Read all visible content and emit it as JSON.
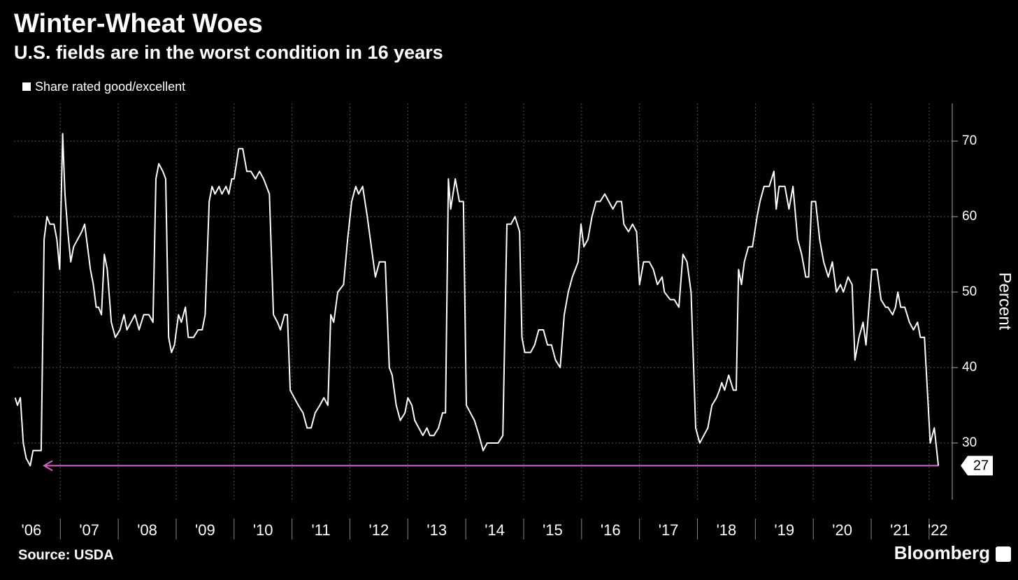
{
  "chart_data": {
    "type": "line",
    "title": "Winter-Wheat Woes",
    "subtitle": "U.S. fields are in the worst condition in 16 years",
    "y_label": "Percent",
    "source": "Source: USDA",
    "brand": "Bloomberg",
    "grid": true,
    "legend": "top-left",
    "xlim": [
      2006.2,
      2022.4
    ],
    "ylim": [
      22.5,
      75
    ],
    "yticks": [
      30,
      40,
      50,
      60,
      70
    ],
    "xticks": [
      {
        "value": 2006.5,
        "label": "'06"
      },
      {
        "value": 2007.5,
        "label": "'07"
      },
      {
        "value": 2008.5,
        "label": "'08"
      },
      {
        "value": 2009.5,
        "label": "'09"
      },
      {
        "value": 2010.5,
        "label": "'10"
      },
      {
        "value": 2011.5,
        "label": "'11"
      },
      {
        "value": 2012.5,
        "label": "'12"
      },
      {
        "value": 2013.5,
        "label": "'13"
      },
      {
        "value": 2014.5,
        "label": "'14"
      },
      {
        "value": 2015.5,
        "label": "'15"
      },
      {
        "value": 2016.5,
        "label": "'16"
      },
      {
        "value": 2017.5,
        "label": "'17"
      },
      {
        "value": 2018.5,
        "label": "'18"
      },
      {
        "value": 2019.5,
        "label": "'19"
      },
      {
        "value": 2020.5,
        "label": "'20"
      },
      {
        "value": 2021.5,
        "label": "'21"
      },
      {
        "value": 2022.15,
        "label": "'22"
      }
    ],
    "xgrid": [
      2007,
      2008,
      2009,
      2010,
      2011,
      2012,
      2013,
      2014,
      2015,
      2016,
      2017,
      2018,
      2019,
      2020,
      2021,
      2022
    ],
    "annotation": {
      "value": 27,
      "x_from": 2006.72,
      "x_to": 2022.16,
      "color": "#d660c8"
    },
    "x": [
      2006.22,
      2006.26,
      2006.31,
      2006.36,
      2006.41,
      2006.48,
      2006.53,
      2006.67,
      2006.72,
      2006.77,
      2006.82,
      2006.89,
      2006.94,
      2006.99,
      2007.04,
      2007.08,
      2007.13,
      2007.18,
      2007.23,
      2007.3,
      2007.37,
      2007.42,
      2007.47,
      2007.52,
      2007.57,
      2007.62,
      2007.66,
      2007.71,
      2007.76,
      2007.81,
      2007.88,
      2007.95,
      2008.03,
      2008.1,
      2008.15,
      2008.22,
      2008.29,
      2008.36,
      2008.44,
      2008.53,
      2008.6,
      2008.65,
      2008.7,
      2008.77,
      2008.82,
      2008.87,
      2008.92,
      2008.97,
      2009.04,
      2009.09,
      2009.16,
      2009.21,
      2009.3,
      2009.38,
      2009.45,
      2009.5,
      2009.57,
      2009.62,
      2009.67,
      2009.74,
      2009.79,
      2009.86,
      2009.91,
      2009.96,
      2010.0,
      2010.08,
      2010.15,
      2010.22,
      2010.29,
      2010.37,
      2010.44,
      2010.51,
      2010.61,
      2010.68,
      2010.75,
      2010.8,
      2010.87,
      2010.92,
      2010.97,
      2011.04,
      2011.11,
      2011.19,
      2011.26,
      2011.33,
      2011.4,
      2011.48,
      2011.55,
      2011.62,
      2011.67,
      2011.72,
      2011.79,
      2011.89,
      2011.96,
      2012.03,
      2012.1,
      2012.15,
      2012.22,
      2012.3,
      2012.37,
      2012.44,
      2012.51,
      2012.61,
      2012.68,
      2012.73,
      2012.8,
      2012.87,
      2012.95,
      2013.0,
      2013.07,
      2013.12,
      2013.19,
      2013.26,
      2013.33,
      2013.38,
      2013.45,
      2013.53,
      2013.6,
      2013.65,
      2013.7,
      2013.74,
      2013.82,
      2013.89,
      2013.96,
      2014.01,
      2014.08,
      2014.15,
      2014.23,
      2014.3,
      2014.37,
      2014.47,
      2014.56,
      2014.64,
      2014.71,
      2014.78,
      2014.85,
      2014.93,
      2014.97,
      2015.02,
      2015.12,
      2015.19,
      2015.26,
      2015.34,
      2015.41,
      2015.48,
      2015.55,
      2015.63,
      2015.7,
      2015.77,
      2015.84,
      2015.94,
      2015.99,
      2016.04,
      2016.11,
      2016.18,
      2016.25,
      2016.32,
      2016.4,
      2016.47,
      2016.54,
      2016.61,
      2016.69,
      2016.73,
      2016.81,
      2016.88,
      2016.95,
      2017.0,
      2017.07,
      2017.17,
      2017.24,
      2017.31,
      2017.39,
      2017.43,
      2017.53,
      2017.6,
      2017.68,
      2017.75,
      2017.82,
      2017.89,
      2017.97,
      2018.04,
      2018.11,
      2018.18,
      2018.25,
      2018.33,
      2018.38,
      2018.42,
      2018.47,
      2018.54,
      2018.62,
      2018.67,
      2018.71,
      2018.76,
      2018.81,
      2018.88,
      2018.95,
      2019.03,
      2019.08,
      2019.15,
      2019.24,
      2019.32,
      2019.36,
      2019.41,
      2019.51,
      2019.58,
      2019.65,
      2019.73,
      2019.8,
      2019.87,
      2019.92,
      2019.97,
      2020.04,
      2020.11,
      2020.18,
      2020.26,
      2020.33,
      2020.4,
      2020.47,
      2020.52,
      2020.6,
      2020.67,
      2020.72,
      2020.79,
      2020.86,
      2020.91,
      2021.01,
      2021.1,
      2021.17,
      2021.25,
      2021.29,
      2021.37,
      2021.42,
      2021.46,
      2021.51,
      2021.58,
      2021.66,
      2021.73,
      2021.8,
      2021.85,
      2021.92,
      2022.02,
      2022.09,
      2022.16
    ],
    "series": [
      {
        "name": "Share rated good/excellent",
        "color": "#ffffff",
        "values": [
          36,
          35,
          36,
          30,
          28,
          27,
          29,
          29,
          57,
          60,
          59,
          59,
          57,
          53,
          71,
          63,
          58,
          54,
          56,
          57,
          58,
          59,
          56,
          53,
          51,
          48,
          48,
          47,
          55,
          53,
          46,
          44,
          45,
          47,
          45,
          46,
          47,
          45,
          47,
          47,
          46,
          65,
          67,
          66,
          65,
          44,
          42,
          43,
          47,
          46,
          48,
          44,
          44,
          45,
          45,
          47,
          62,
          64,
          63,
          64,
          63,
          64,
          63,
          65,
          65,
          69,
          69,
          66,
          66,
          65,
          66,
          65,
          63,
          47,
          46,
          45,
          47,
          47,
          37,
          36,
          35,
          34,
          32,
          32,
          34,
          35,
          36,
          35,
          47,
          46,
          50,
          51,
          57,
          62,
          64,
          63,
          64,
          60,
          56,
          52,
          54,
          54,
          40,
          39,
          35,
          33,
          34,
          36,
          35,
          33,
          32,
          31,
          32,
          31,
          31,
          32,
          34,
          34,
          65,
          61,
          65,
          62,
          62,
          35,
          34,
          33,
          31,
          29,
          30,
          30,
          30,
          31,
          59,
          59,
          60,
          58,
          44,
          42,
          42,
          43,
          45,
          45,
          43,
          43,
          41,
          40,
          47,
          50,
          52,
          54,
          59,
          56,
          57,
          60,
          62,
          62,
          63,
          62,
          61,
          62,
          62,
          59,
          58,
          59,
          58,
          51,
          54,
          54,
          53,
          51,
          52,
          50,
          49,
          49,
          48,
          55,
          54,
          50,
          32,
          30,
          31,
          32,
          35,
          36,
          37,
          38,
          37,
          39,
          37,
          37,
          53,
          51,
          54,
          56,
          56,
          60,
          62,
          64,
          64,
          66,
          61,
          64,
          64,
          61,
          64,
          57,
          55,
          52,
          52,
          62,
          62,
          57,
          54,
          52,
          54,
          50,
          51,
          50,
          52,
          51,
          41,
          44,
          46,
          43,
          53,
          53,
          49,
          48,
          48,
          47,
          48,
          50,
          48,
          48,
          46,
          45,
          46,
          44,
          44,
          30,
          32,
          27
        ]
      }
    ]
  }
}
